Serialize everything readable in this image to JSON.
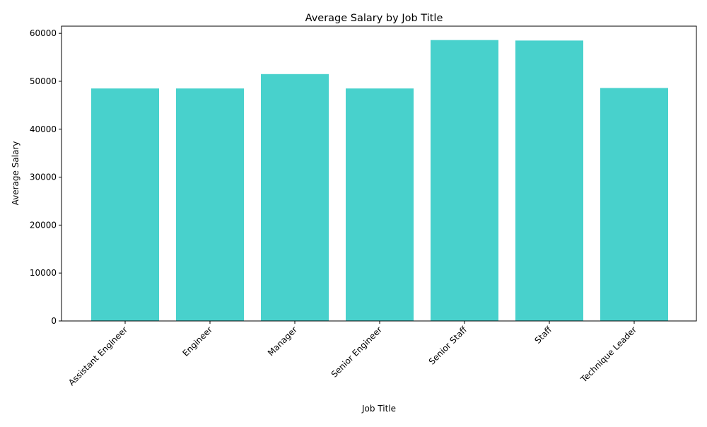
{
  "chart_data": {
    "type": "bar",
    "title": "Average Salary by Job Title",
    "xlabel": "Job Title",
    "ylabel": "Average Salary",
    "categories": [
      "Assistant Engineer",
      "Engineer",
      "Manager",
      "Senior Engineer",
      "Senior Staff",
      "Staff",
      "Technique Leader"
    ],
    "values": [
      48500,
      48500,
      51500,
      48500,
      58600,
      58500,
      48600
    ],
    "ylim": [
      0,
      61500
    ],
    "yticks": [
      0,
      10000,
      20000,
      30000,
      40000,
      50000,
      60000
    ],
    "ytick_labels": [
      "0",
      "10000",
      "20000",
      "30000",
      "40000",
      "50000",
      "60000"
    ],
    "bar_color": "#48d1cc",
    "grid": false,
    "legend": "none",
    "xtick_rotation": "45 degrees"
  }
}
